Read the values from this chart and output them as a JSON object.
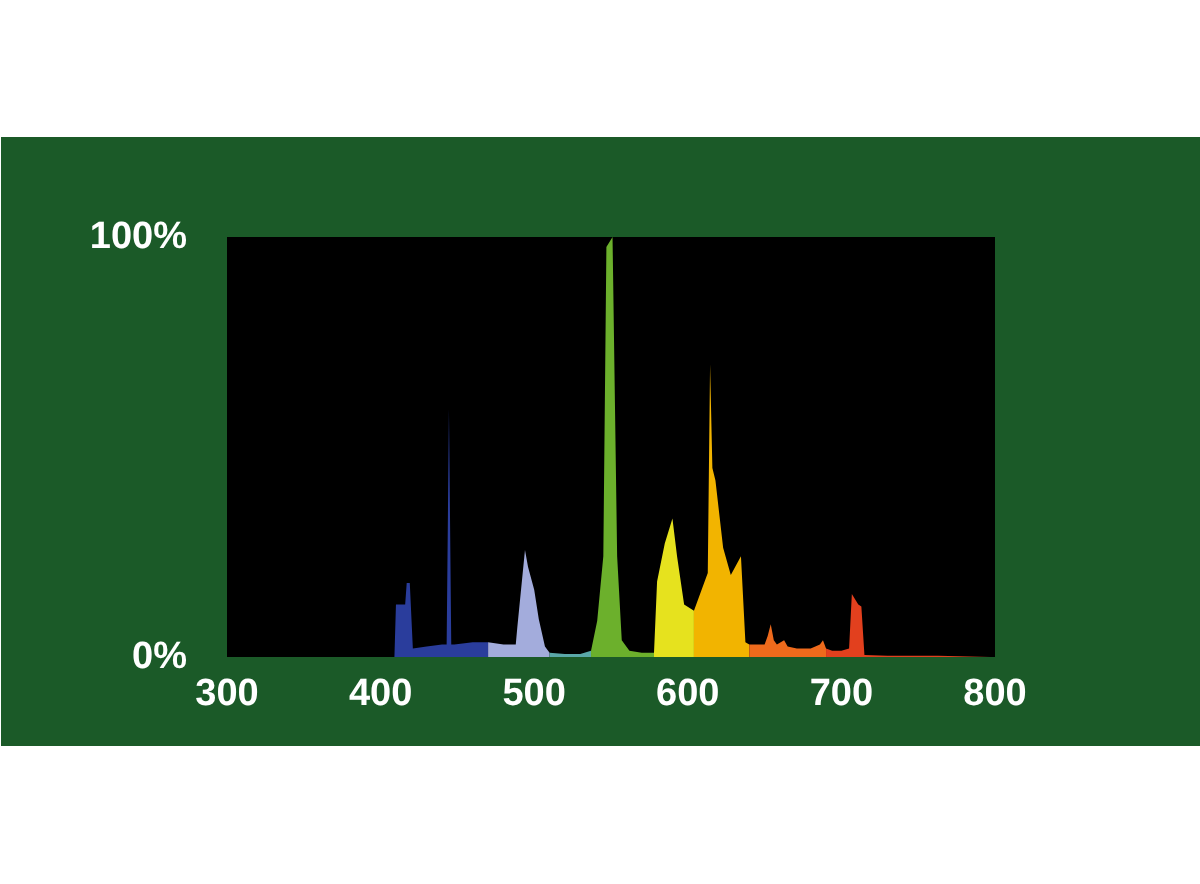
{
  "chart_data": {
    "type": "area",
    "xlim": [
      300,
      800
    ],
    "ylim": [
      0,
      100
    ],
    "xticks": [
      300,
      400,
      500,
      600,
      700,
      800
    ],
    "yticks": [
      {
        "value": 0,
        "label": "0%"
      },
      {
        "value": 100,
        "label": "100%"
      }
    ],
    "grid": false,
    "series": [
      {
        "color": "#2a3d9c",
        "x": [
          409,
          410,
          416,
          417,
          419,
          421,
          430,
          440,
          443,
          444.5,
          446,
          448,
          460,
          470
        ],
        "values": [
          0,
          12.5,
          12.5,
          17.6,
          17.6,
          2,
          2.5,
          3,
          3,
          59,
          3,
          3,
          3.5,
          3.5
        ]
      },
      {
        "color": "#a3acdc",
        "x": [
          470,
          480,
          488,
          489,
          494,
          496,
          500,
          503,
          507,
          510
        ],
        "values": [
          3.5,
          3,
          3,
          7,
          25.5,
          21.4,
          16,
          9,
          2.5,
          1
        ]
      },
      {
        "color": "#5aa8a8",
        "x": [
          510,
          520,
          530,
          537
        ],
        "values": [
          1,
          0.7,
          0.7,
          1.5
        ]
      },
      {
        "color": "#6cb02c",
        "x": [
          537,
          541,
          545,
          547,
          551,
          554,
          557,
          562,
          570,
          578
        ],
        "values": [
          1.5,
          8.6,
          24,
          97.6,
          100,
          24,
          4,
          1.5,
          1,
          1
        ]
      },
      {
        "color": "#e6e21e",
        "x": [
          578,
          580,
          585,
          590,
          593,
          597.6,
          604
        ],
        "values": [
          1,
          18,
          27,
          33,
          24,
          12.5,
          11
        ]
      },
      {
        "color": "#f2b400",
        "x": [
          604,
          609,
          613,
          614.5,
          616,
          618,
          623,
          628,
          634.6,
          637.5,
          640
        ],
        "values": [
          11,
          16,
          20,
          69.7,
          45,
          42,
          26,
          19.5,
          24,
          3.5,
          3
        ]
      },
      {
        "color": "#ee6a1c",
        "x": [
          640,
          650,
          652,
          654,
          656,
          658,
          662.7,
          665,
          671,
          680,
          686,
          688,
          690
        ],
        "values": [
          3,
          3,
          5,
          7.8,
          4,
          3,
          4,
          2.5,
          2,
          2,
          3,
          4,
          2
        ]
      },
      {
        "color": "#e2401e",
        "x": [
          690,
          694,
          700,
          705,
          706.8,
          711,
          713,
          715,
          730,
          763,
          797
        ],
        "values": [
          2,
          1.5,
          1.5,
          2,
          15,
          12.5,
          12,
          0.5,
          0.3,
          0.3,
          0
        ]
      }
    ]
  }
}
